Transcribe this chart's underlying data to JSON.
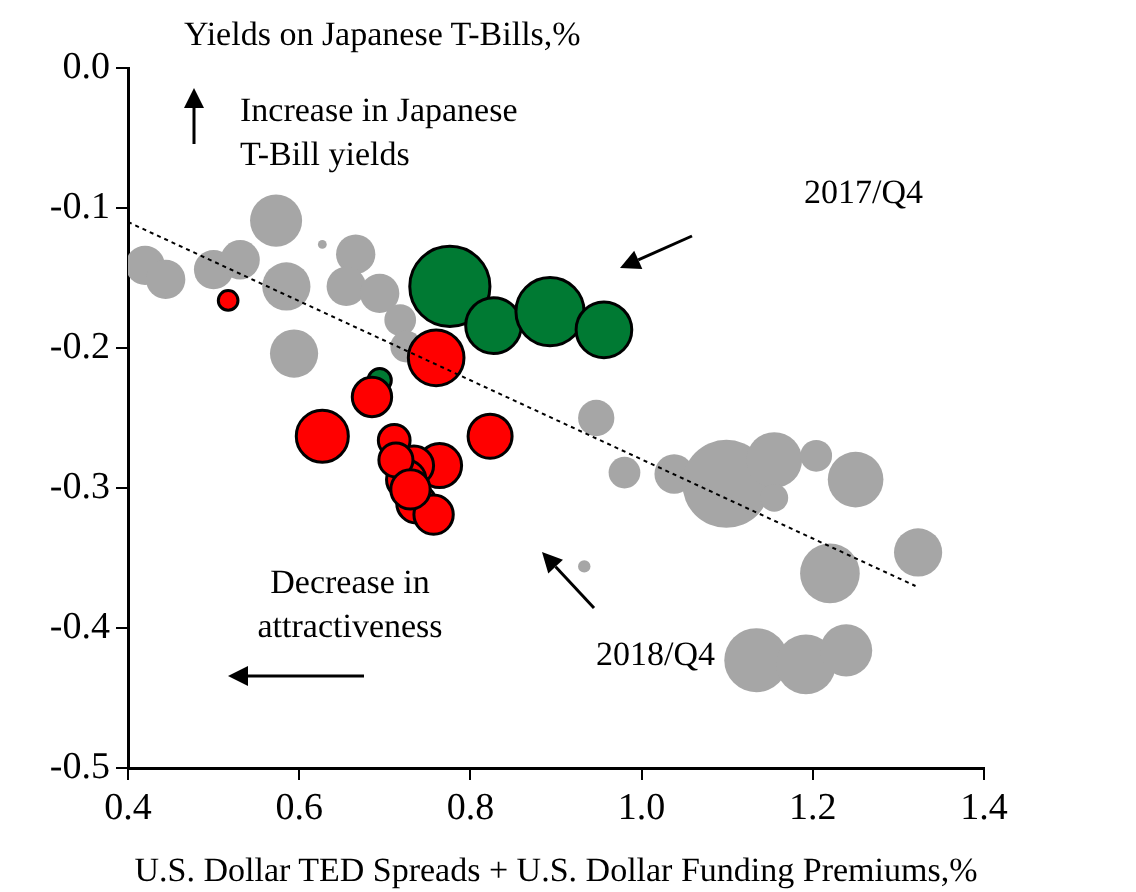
{
  "chart_data": {
    "type": "bubble",
    "xlabel": "U.S. Dollar TED Spreads + U.S. Dollar Funding Premiums,%",
    "ylabel": "Yields on Japanese T-Bills,%",
    "xlim": [
      0.4,
      1.4
    ],
    "xticks": [
      {
        "value": 0.4,
        "label": "0.4"
      },
      {
        "value": 0.6,
        "label": "0.6"
      },
      {
        "value": 0.8,
        "label": "0.8"
      },
      {
        "value": 1.0,
        "label": "1.0"
      },
      {
        "value": 1.2,
        "label": "1.2"
      },
      {
        "value": 1.4,
        "label": "1.4"
      }
    ],
    "ylim": [
      -0.5,
      0.0
    ],
    "yticks": [
      {
        "value": -0.5,
        "label": "-0.5"
      },
      {
        "value": -0.4,
        "label": "-0.4"
      },
      {
        "value": -0.3,
        "label": "-0.3"
      },
      {
        "value": -0.2,
        "label": "-0.2"
      },
      {
        "value": -0.1,
        "label": "-0.1"
      },
      {
        "value": 0.0,
        "label": "0.0"
      }
    ],
    "grid": false,
    "legend": false,
    "marker": "circle",
    "series": [
      {
        "color": "#a6a6a6",
        "x": [
          0.573,
          0.42,
          0.444,
          0.5,
          0.531,
          0.585,
          0.594,
          0.627,
          0.666,
          0.655,
          0.694,
          0.718,
          0.725,
          0.947,
          0.98,
          1.038,
          0.933,
          1.099,
          1.155,
          1.155,
          1.204,
          1.25,
          1.323,
          1.22,
          1.134,
          1.192,
          1.239
        ],
        "values": [
          -0.109,
          -0.141,
          -0.151,
          -0.144,
          -0.137,
          -0.156,
          -0.204,
          -0.126,
          -0.133,
          -0.156,
          -0.161,
          -0.18,
          -0.199,
          -0.25,
          -0.289,
          -0.29,
          -0.356,
          -0.297,
          -0.28,
          -0.307,
          -0.277,
          -0.294,
          -0.346,
          -0.361,
          -0.423,
          -0.426,
          -0.416
        ],
        "sizes": [
          0.35,
          0.2,
          0.2,
          0.2,
          0.2,
          0.3,
          0.3,
          0.01,
          0.2,
          0.2,
          0.2,
          0.13,
          0.13,
          0.17,
          0.13,
          0.2,
          0.02,
          1,
          0.4,
          0.1,
          0.13,
          0.4,
          0.3,
          0.46,
          0.53,
          0.46,
          0.35
        ]
      },
      {
        "color": "#007a33",
        "x": [
          0.776,
          0.827,
          0.893,
          0.956,
          0.694
        ],
        "values": [
          -0.156,
          -0.184,
          -0.174,
          -0.187,
          -0.223
        ],
        "sizes": [
          0.83,
          0.4,
          0.6,
          0.4,
          0.07
        ]
      },
      {
        "color": "#ff0000",
        "x": [
          0.517,
          0.76,
          0.685,
          0.627,
          0.711,
          0.823,
          0.764,
          0.734,
          0.725,
          0.737,
          0.757,
          0.713,
          0.73
        ],
        "values": [
          -0.166,
          -0.207,
          -0.235,
          -0.263,
          -0.266,
          -0.263,
          -0.284,
          -0.284,
          -0.294,
          -0.311,
          -0.319,
          -0.28,
          -0.301
        ],
        "sizes": [
          0.05,
          0.4,
          0.2,
          0.35,
          0.13,
          0.25,
          0.25,
          0.2,
          0.2,
          0.2,
          0.2,
          0.15,
          0.2
        ]
      },
      {
        "type": "line",
        "color": "#000000",
        "line_style": "dotted",
        "marker": "none",
        "x": [
          0.4,
          1.32
        ],
        "values": [
          -0.11,
          -0.37
        ]
      }
    ],
    "annotations": [
      "Increase in Japanese\nT-Bill yields",
      "2017/Q4",
      "2018/Q4",
      "Decrease in\nattractiveness"
    ]
  }
}
